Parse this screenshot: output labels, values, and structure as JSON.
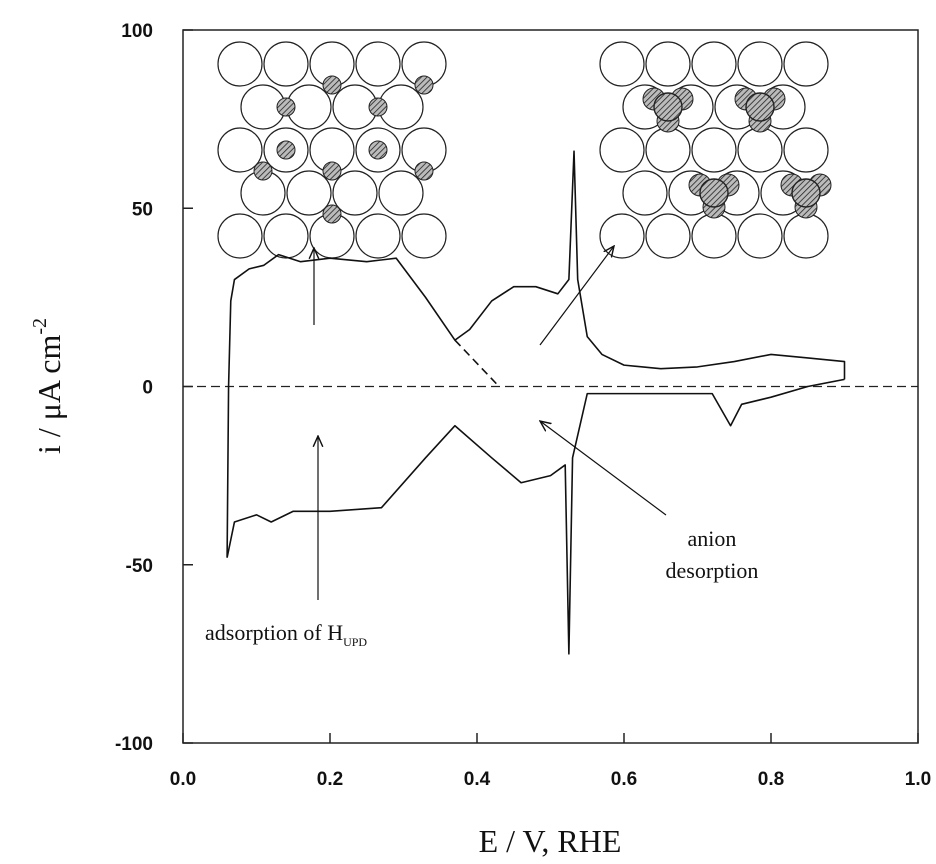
{
  "chart_data": {
    "type": "line",
    "xlabel": "E  / V, RHE",
    "ylabel": "i  /  μA cm",
    "ylabel_superscript": "-2",
    "xlim": [
      0,
      1
    ],
    "ylim": [
      -100,
      100
    ],
    "xticks": [
      {
        "value": 0,
        "label": "0.0"
      },
      0.2,
      0.4,
      0.6,
      0.8,
      {
        "value": 1,
        "label": "1.0"
      }
    ],
    "yticks": [
      100,
      50,
      0,
      -50,
      -100
    ],
    "reference_line": 0,
    "color": "#111111",
    "series": [
      {
        "x": [
          0.06,
          0.062,
          0.065,
          0.07,
          0.09,
          0.11,
          0.13,
          0.16,
          0.2,
          0.25,
          0.29,
          0.33,
          0.37,
          0.39,
          0.42,
          0.45,
          0.48,
          0.51,
          0.525,
          0.532,
          0.537,
          0.55,
          0.57,
          0.6,
          0.65,
          0.7,
          0.75,
          0.8,
          0.85,
          0.9,
          0.9
        ],
        "values": [
          -48,
          0,
          24,
          30,
          33,
          34,
          37,
          35,
          36,
          35,
          36,
          25,
          13,
          16,
          24,
          28,
          28,
          26,
          30,
          66,
          30,
          14,
          9,
          6,
          5,
          5.5,
          7,
          9,
          8,
          7,
          2
        ]
      },
      {
        "x": [
          0.9,
          0.85,
          0.8,
          0.76,
          0.745,
          0.72,
          0.65,
          0.55,
          0.53,
          0.525,
          0.52,
          0.5,
          0.46,
          0.42,
          0.37,
          0.33,
          0.27,
          0.2,
          0.15,
          0.12,
          0.1,
          0.07,
          0.06
        ],
        "values": [
          2,
          0,
          -3,
          -5,
          -11,
          -2,
          -2,
          -2,
          -20,
          -75,
          -22,
          -25,
          -27,
          -20,
          -11,
          -20,
          -34,
          -35,
          -35,
          -38,
          -36,
          -38,
          -48
        ]
      },
      {
        "x": [
          0.37,
          0.43
        ],
        "values": [
          13,
          0
        ],
        "dash": true
      }
    ],
    "annotations": [
      {
        "text": "adsorption of  H",
        "subscript": "UPD"
      },
      {
        "text": "anion"
      },
      {
        "text": "desorption"
      }
    ]
  }
}
